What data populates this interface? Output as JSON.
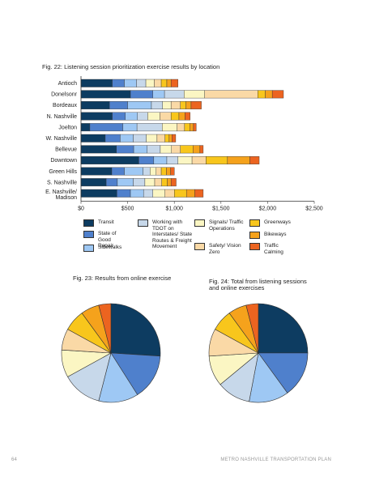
{
  "page": {
    "number": "64",
    "running_title": "METRO NASHVILLE TRANSPORTATION PLAN"
  },
  "fig22": {
    "caption": "Fig. 22: Listening session prioritization exercise results by location"
  },
  "fig23": {
    "caption": "Fig. 23: Results from online exercise"
  },
  "fig24": {
    "caption_line1": "Fig. 24: Total from listening sessions",
    "caption_line2": "and online exercises"
  },
  "legend": [
    {
      "label": "Transit",
      "color": "#0d3c61"
    },
    {
      "label": "State of Good Repair",
      "color": "#4f80cc"
    },
    {
      "label": "Sidewalks",
      "color": "#9ec8f4"
    },
    {
      "label": "Working with TDOT on Interstates/ State Routes & Freight Movement",
      "color": "#c7d8ea"
    },
    {
      "label": "Signals/ Traffic Operations",
      "color": "#fbf6c3"
    },
    {
      "label": "Safety/ Vision Zero",
      "color": "#fad9a6"
    },
    {
      "label": "Greenways",
      "color": "#f8c61c"
    },
    {
      "label": "Bikeways",
      "color": "#f5a21c"
    },
    {
      "label": "Traffic Calming",
      "color": "#ec6420"
    }
  ],
  "chart_data": [
    {
      "type": "bar",
      "orientation": "horizontal",
      "stacked": true,
      "title": "Fig. 22: Listening session prioritization exercise results by location",
      "categories": [
        "Antioch",
        "Donelsonr",
        "Bordeaux",
        "N. Nashville",
        "Joelton",
        "W. Nashville",
        "Bellevue",
        "Downtown",
        "Green Hills",
        "S. Nashville",
        "E. Nashville/ Madison"
      ],
      "xlim": [
        0,
        2500
      ],
      "xticks": [
        "$0",
        "$500",
        "$1,000",
        "$1,500",
        "$2,000",
        "$2,500"
      ],
      "series": [
        {
          "name": "Transit",
          "color": "#0d3c61",
          "values": [
            335,
            530,
            305,
            335,
            95,
            260,
            380,
            620,
            330,
            270,
            385
          ]
        },
        {
          "name": "State of Good Repair",
          "color": "#4f80cc",
          "values": [
            130,
            240,
            195,
            140,
            355,
            160,
            185,
            160,
            135,
            120,
            145
          ]
        },
        {
          "name": "Sidewalks",
          "color": "#9ec8f4",
          "values": [
            130,
            125,
            255,
            130,
            150,
            140,
            145,
            140,
            200,
            170,
            140
          ]
        },
        {
          "name": "Working with TDOT on Interstates/ State Routes & Freight Movement",
          "color": "#c7d8ea",
          "values": [
            100,
            210,
            120,
            110,
            270,
            140,
            140,
            120,
            75,
            125,
            100
          ]
        },
        {
          "name": "Signals/ Traffic Operations",
          "color": "#fbf6c3",
          "values": [
            90,
            220,
            90,
            130,
            160,
            115,
            120,
            150,
            65,
            105,
            130
          ]
        },
        {
          "name": "Safety/ Vision Zero",
          "color": "#fad9a6",
          "values": [
            75,
            570,
            100,
            120,
            80,
            85,
            95,
            150,
            55,
            75,
            100
          ]
        },
        {
          "name": "Greenways",
          "color": "#f8c61c",
          "values": [
            60,
            80,
            60,
            85,
            55,
            45,
            135,
            230,
            55,
            60,
            130
          ]
        },
        {
          "name": "Bikeways",
          "color": "#f5a21c",
          "values": [
            45,
            75,
            55,
            65,
            40,
            30,
            75,
            240,
            45,
            40,
            90
          ]
        },
        {
          "name": "Traffic Calming",
          "color": "#ec6420",
          "values": [
            75,
            120,
            110,
            55,
            30,
            40,
            35,
            100,
            40,
            55,
            90
          ]
        }
      ]
    },
    {
      "type": "pie",
      "title": "Fig. 23: Results from online exercise",
      "categories": [
        "Transit",
        "State of Good Repair",
        "Sidewalks",
        "Working with TDOT on Interstates/ State Routes & Freight Movement",
        "Signals/ Traffic Operations",
        "Safety/ Vision Zero",
        "Greenways",
        "Bikeways",
        "Traffic Calming"
      ],
      "values": [
        26,
        15,
        13,
        13,
        9,
        7,
        7,
        6,
        4
      ],
      "colors": [
        "#0d3c61",
        "#4f80cc",
        "#9ec8f4",
        "#c7d8ea",
        "#fbf6c3",
        "#fad9a6",
        "#f8c61c",
        "#f5a21c",
        "#ec6420"
      ]
    },
    {
      "type": "pie",
      "title": "Fig. 24: Total from listening sessions and online exercises",
      "categories": [
        "Transit",
        "State of Good Repair",
        "Sidewalks",
        "Working with TDOT on Interstates/ State Routes & Freight Movement",
        "Signals/ Traffic Operations",
        "Safety/ Vision Zero",
        "Greenways",
        "Bikeways",
        "Traffic Calming"
      ],
      "values": [
        25,
        15,
        13,
        11,
        10,
        9,
        7,
        6,
        4
      ],
      "colors": [
        "#0d3c61",
        "#4f80cc",
        "#9ec8f4",
        "#c7d8ea",
        "#fbf6c3",
        "#fad9a6",
        "#f8c61c",
        "#f5a21c",
        "#ec6420"
      ]
    }
  ]
}
